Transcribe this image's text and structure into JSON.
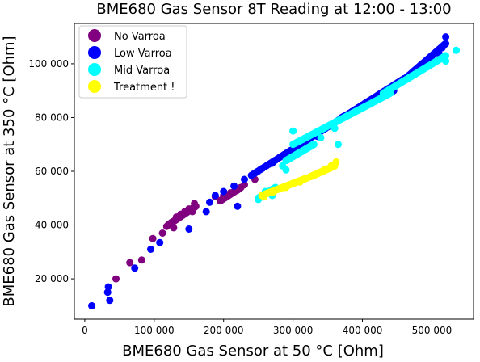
{
  "chart_data": {
    "type": "scatter",
    "title": "BME680 Gas Sensor 8T Reading at 12:00 - 13:00",
    "xlabel": "BME680 Gas Sensor at 50 °C [Ohm]",
    "ylabel": "BME680 Gas Sensor at 350 °C [Ohm]",
    "xlim": [
      -15000,
      560000
    ],
    "ylim": [
      5000,
      115000
    ],
    "xticks": [
      0,
      100000,
      200000,
      300000,
      400000,
      500000
    ],
    "yticks": [
      20000,
      40000,
      60000,
      80000,
      100000
    ],
    "xtick_labels": [
      "0",
      "100 000",
      "200 000",
      "300 000",
      "400 000",
      "500 000"
    ],
    "ytick_labels": [
      "20 000",
      "40 000",
      "60 000",
      "80 000",
      "100 000"
    ],
    "grid": false,
    "legend_position": "top-left",
    "series": [
      {
        "name": "No Varroa",
        "color": "#800080",
        "segments": [
          [
            [
              195000,
              49000
            ],
            [
              225000,
              54000
            ]
          ],
          [
            [
              120000,
              40000
            ],
            [
              160000,
              47000
            ]
          ]
        ],
        "points": [
          [
            45000,
            20000
          ],
          [
            82000,
            27000
          ],
          [
            65000,
            26000
          ],
          [
            98000,
            35000
          ],
          [
            112000,
            37000
          ],
          [
            118000,
            39500
          ],
          [
            125000,
            41000
          ],
          [
            132000,
            43000
          ],
          [
            138000,
            44000
          ],
          [
            144000,
            45000
          ],
          [
            150000,
            46000
          ],
          [
            155000,
            45000
          ],
          [
            158000,
            48000
          ],
          [
            188000,
            50500
          ],
          [
            200000,
            51000
          ],
          [
            210000,
            52000
          ],
          [
            220000,
            53000
          ],
          [
            230000,
            55000
          ],
          [
            245000,
            57000
          ],
          [
            128000,
            39000
          ]
        ]
      },
      {
        "name": "Low Varroa",
        "color": "#0000ff",
        "segments": [
          [
            [
              240000,
              58500
            ],
            [
              460000,
              94500
            ]
          ],
          [
            [
              455000,
              93000
            ],
            [
              520000,
              107500
            ]
          ],
          [
            [
              370000,
              80000
            ],
            [
              445000,
              90000
            ]
          ]
        ],
        "points": [
          [
            10000,
            10000
          ],
          [
            36000,
            12000
          ],
          [
            33000,
            15000
          ],
          [
            34000,
            17000
          ],
          [
            72000,
            24000
          ],
          [
            95000,
            31000
          ],
          [
            108000,
            33500
          ],
          [
            150000,
            38500
          ],
          [
            175000,
            45000
          ],
          [
            180000,
            48500
          ],
          [
            188000,
            51000
          ],
          [
            200000,
            52500
          ],
          [
            215000,
            54500
          ],
          [
            230000,
            57000
          ],
          [
            220000,
            47000
          ],
          [
            270000,
            63000
          ],
          [
            300000,
            67500
          ],
          [
            335000,
            73000
          ],
          [
            425000,
            87000
          ],
          [
            520000,
            110000
          ],
          [
            515000,
            106000
          ],
          [
            510000,
            104000
          ],
          [
            500000,
            103000
          ]
        ]
      },
      {
        "name": "Mid Varroa",
        "color": "#00ffff",
        "segments": [
          [
            [
              300000,
              70000
            ],
            [
              440000,
              89000
            ]
          ],
          [
            [
              430000,
              89000
            ],
            [
              520000,
              103000
            ]
          ],
          [
            [
              290000,
              64000
            ],
            [
              330000,
              70000
            ]
          ],
          [
            [
              250000,
              50000
            ],
            [
              275000,
              54000
            ]
          ]
        ],
        "points": [
          [
            535000,
            105000
          ],
          [
            520000,
            101000
          ],
          [
            360000,
            76000
          ],
          [
            365000,
            70000
          ],
          [
            340000,
            72500
          ],
          [
            285000,
            62000
          ],
          [
            290000,
            60500
          ],
          [
            260000,
            52500
          ],
          [
            300000,
            75000
          ],
          [
            250000,
            49500
          ],
          [
            270000,
            51000
          ]
        ]
      },
      {
        "name": "Treatment !",
        "color": "#ffff00",
        "segments": [
          [
            [
              255000,
              51000
            ],
            [
              320000,
              57500
            ]
          ],
          [
            [
              325000,
              58000
            ],
            [
              360000,
              62000
            ]
          ]
        ],
        "points": [
          [
            258000,
            50500
          ],
          [
            270000,
            52000
          ],
          [
            290000,
            54000
          ],
          [
            310000,
            56000
          ],
          [
            330000,
            58500
          ],
          [
            345000,
            60500
          ],
          [
            355000,
            62000
          ],
          [
            362000,
            63500
          ]
        ]
      }
    ]
  }
}
